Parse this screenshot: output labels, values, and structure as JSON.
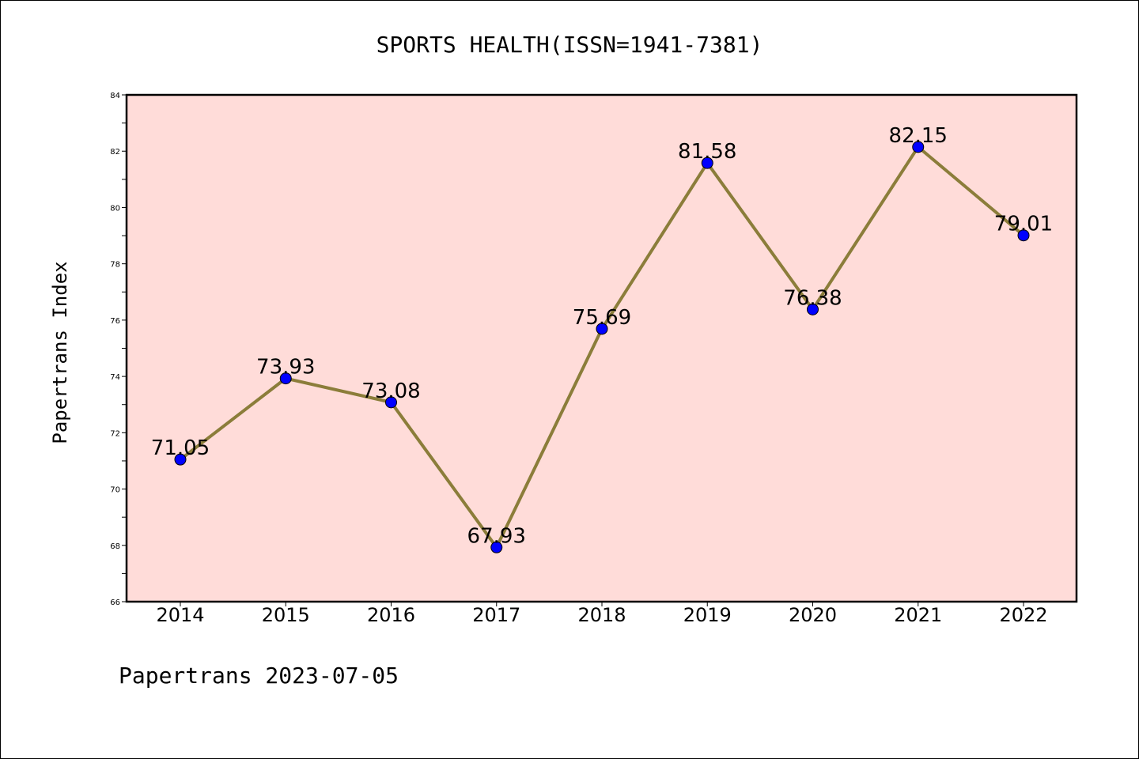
{
  "chart_data": {
    "type": "line",
    "title": "SPORTS HEALTH(ISSN=1941-7381)",
    "xlabel": "",
    "ylabel": "Papertrans Index",
    "categories": [
      "2014",
      "2015",
      "2016",
      "2017",
      "2018",
      "2019",
      "2020",
      "2021",
      "2022"
    ],
    "series": [
      {
        "values": [
          71.05,
          73.93,
          73.08,
          67.93,
          75.69,
          81.58,
          76.38,
          82.15,
          79.01
        ],
        "data_labels": [
          "71.05",
          "73.93",
          "73.08",
          "67.93",
          "75.69",
          "81.58",
          "76.38",
          "82.15",
          "79.01"
        ]
      }
    ],
    "ylim": [
      66,
      84
    ],
    "yticks": [
      "66",
      "68",
      "70",
      "72",
      "74",
      "76",
      "78",
      "80",
      "82",
      "84"
    ],
    "grid": false,
    "legend": "none",
    "colors": {
      "line": "#8b7d3a",
      "marker": "#0000ff",
      "plot_background": "#ffdcd9",
      "axes": "#000000"
    }
  },
  "footer": "Papertrans 2023-07-05"
}
